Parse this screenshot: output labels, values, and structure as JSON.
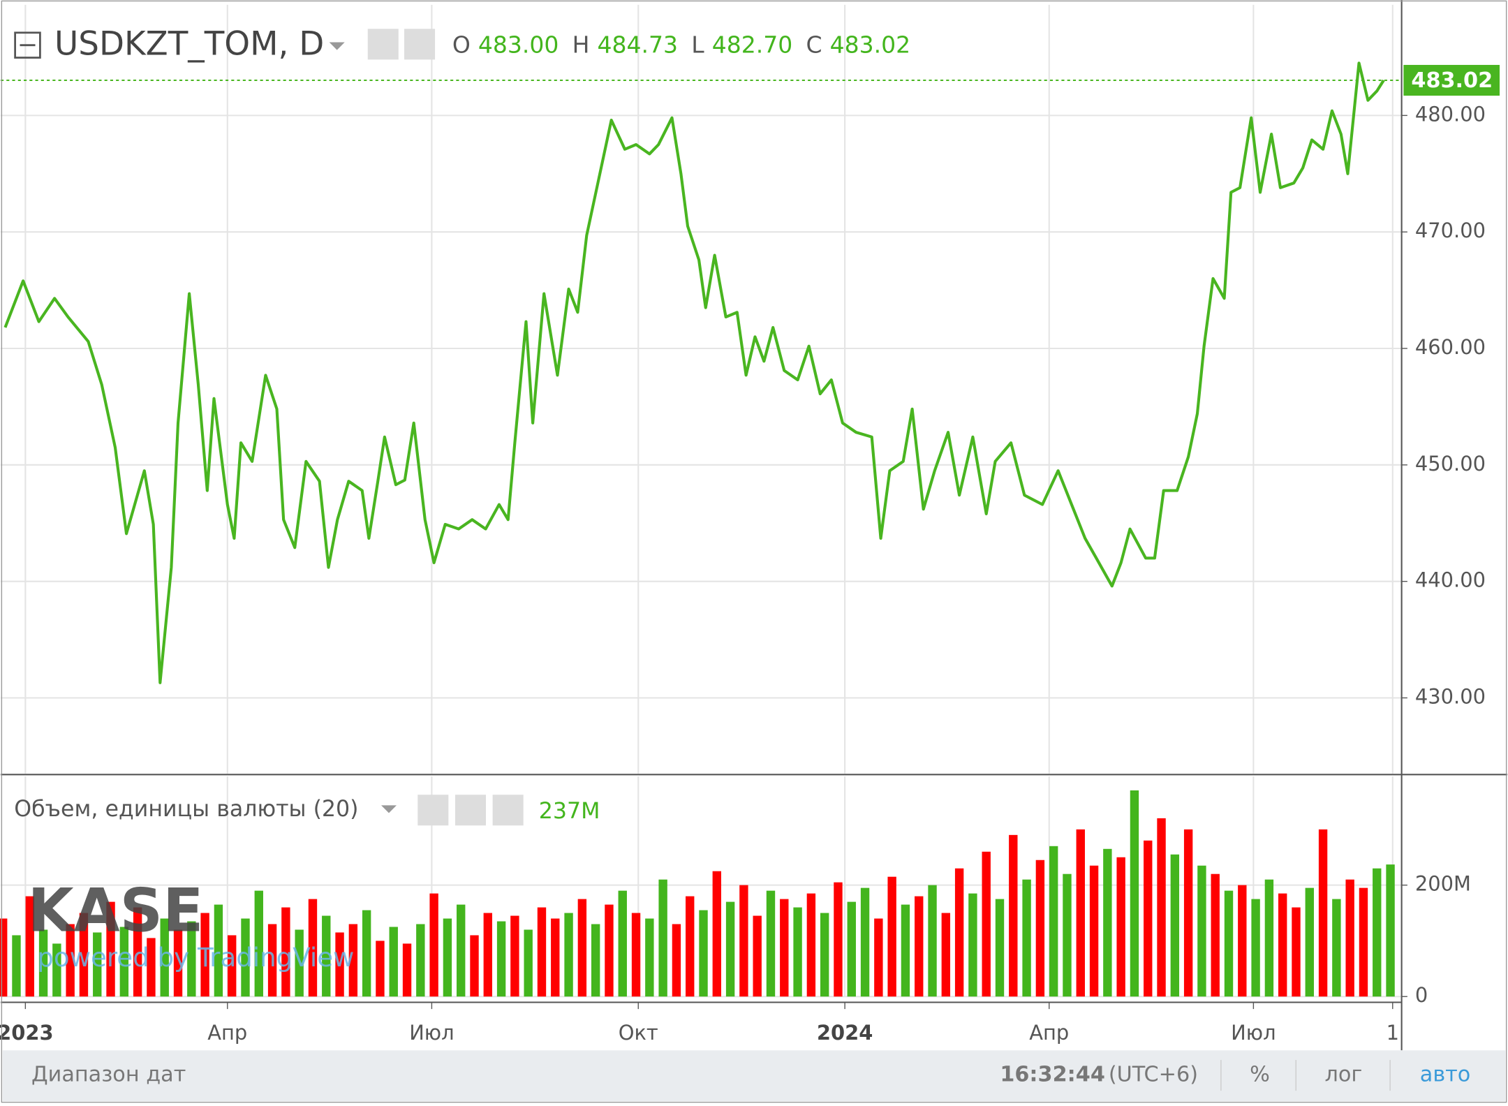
{
  "header": {
    "symbol": "USDKZT_TOM, D",
    "ohlc": [
      {
        "key": "O",
        "value": "483.00"
      },
      {
        "key": "H",
        "value": "484.73"
      },
      {
        "key": "L",
        "value": "482.70"
      },
      {
        "key": "C",
        "value": "483.02"
      }
    ]
  },
  "volume_header": {
    "title": "Объем, единицы валюты (20)",
    "last": "237M"
  },
  "watermark": {
    "logo": "KASE",
    "text": "powered by TradingView"
  },
  "footer": {
    "range": "Диапазон дат",
    "time": "16:32:44",
    "zone": "(UTC+6)",
    "percent": "%",
    "log": "лог",
    "auto": "авто"
  },
  "chart_data": [
    {
      "type": "line",
      "color": "#49b520",
      "grid": true,
      "last_price": {
        "value": 483.02,
        "label": "483.02"
      },
      "xlim": [
        -11,
        613
      ],
      "ylim": [
        423.5,
        489.5
      ],
      "xticks": [
        {
          "value": 0,
          "label": "2023"
        },
        {
          "value": 90,
          "label": "Апр"
        },
        {
          "value": 181,
          "label": "Июл"
        },
        {
          "value": 273,
          "label": "Окт"
        },
        {
          "value": 365,
          "label": "2024"
        },
        {
          "value": 456,
          "label": "Апр"
        },
        {
          "value": 547,
          "label": "Июл"
        },
        {
          "value": 609,
          "label": "1"
        }
      ],
      "yticks": [
        {
          "value": 430,
          "label": "430.00"
        },
        {
          "value": 440,
          "label": "440.00"
        },
        {
          "value": 450,
          "label": "450.00"
        },
        {
          "value": 460,
          "label": "460.00"
        },
        {
          "value": 470,
          "label": "470.00"
        },
        {
          "value": 480,
          "label": "480.00"
        }
      ],
      "x": [
        -9,
        -1,
        6,
        13,
        19,
        28,
        34,
        40,
        45,
        53,
        57,
        60,
        65,
        68,
        73,
        77,
        81,
        84,
        90,
        93,
        96,
        101,
        107,
        112,
        115,
        120,
        125,
        131,
        135,
        139,
        144,
        150,
        153,
        157,
        160,
        165,
        169,
        173,
        178,
        182,
        187,
        193,
        199,
        205,
        211,
        215,
        218,
        223,
        226,
        231,
        237,
        242,
        246,
        250,
        255,
        261,
        267,
        272,
        278,
        282,
        288,
        292,
        295,
        300,
        303,
        307,
        312,
        317,
        321,
        325,
        329,
        333,
        338,
        344,
        349,
        354,
        359,
        364,
        370,
        377,
        381,
        385,
        391,
        395,
        400,
        405,
        411,
        416,
        422,
        428,
        432,
        439,
        445,
        453,
        460,
        466,
        472,
        477,
        484,
        488,
        492,
        499,
        503,
        507,
        513,
        518,
        522,
        525,
        529,
        534,
        537,
        541,
        546,
        550,
        555,
        559,
        565,
        569,
        573,
        578,
        582,
        586,
        589,
        594,
        598,
        602,
        605
      ],
      "values": [
        461.8,
        465.8,
        462.3,
        464.3,
        462.7,
        460.6,
        456.9,
        451.5,
        444.1,
        449.5,
        444.9,
        431.3,
        441.2,
        453.6,
        464.7,
        456.9,
        447.8,
        455.7,
        446.6,
        443.7,
        451.9,
        450.3,
        457.7,
        454.8,
        445.3,
        442.9,
        450.3,
        448.6,
        441.2,
        445.3,
        448.6,
        447.8,
        443.7,
        448.6,
        452.4,
        448.3,
        448.7,
        453.6,
        445.3,
        441.6,
        444.9,
        444.5,
        445.3,
        444.5,
        446.6,
        445.3,
        451.9,
        462.3,
        453.6,
        464.7,
        457.7,
        465.1,
        463.1,
        469.7,
        474.2,
        479.6,
        477.1,
        477.5,
        476.7,
        477.5,
        479.8,
        475.0,
        470.5,
        467.6,
        463.5,
        468.0,
        462.7,
        463.1,
        457.7,
        461.0,
        458.9,
        461.8,
        458.1,
        457.3,
        460.2,
        456.1,
        457.3,
        453.6,
        452.8,
        452.4,
        443.7,
        449.5,
        450.3,
        454.8,
        446.2,
        449.5,
        452.8,
        447.4,
        452.4,
        445.8,
        450.3,
        451.9,
        447.4,
        446.6,
        449.5,
        446.6,
        443.7,
        442.0,
        439.6,
        441.6,
        444.5,
        442.0,
        442.0,
        447.8,
        447.8,
        450.7,
        454.4,
        460.2,
        466.0,
        464.3,
        473.4,
        473.8,
        479.8,
        473.4,
        478.4,
        473.8,
        474.2,
        475.5,
        477.9,
        477.1,
        480.4,
        478.4,
        475.0,
        484.5,
        481.3,
        482.1,
        483.02
      ]
    },
    {
      "type": "bar",
      "grid": true,
      "xlim": [
        -11,
        613
      ],
      "ylim": [
        0,
        395
      ],
      "yticks": [
        0,
        {
          "value": 200,
          "label": "200M"
        }
      ],
      "x": [
        -10,
        -4,
        2,
        8,
        14,
        20,
        26,
        32,
        38,
        44,
        50,
        56,
        62,
        68,
        74,
        80,
        86,
        92,
        98,
        104,
        110,
        116,
        122,
        128,
        134,
        140,
        146,
        152,
        158,
        164,
        170,
        176,
        182,
        188,
        194,
        200,
        206,
        212,
        218,
        224,
        230,
        236,
        242,
        248,
        254,
        260,
        266,
        272,
        278,
        284,
        290,
        296,
        302,
        308,
        314,
        320,
        326,
        332,
        338,
        344,
        350,
        356,
        362,
        368,
        374,
        380,
        386,
        392,
        398,
        404,
        410,
        416,
        422,
        428,
        434,
        440,
        446,
        452,
        458,
        464,
        470,
        476,
        482,
        488,
        494,
        500,
        506,
        512,
        518,
        524,
        530,
        536,
        542,
        548,
        554,
        560,
        566,
        572,
        578,
        584,
        590,
        596,
        602,
        608
      ],
      "values": [
        140,
        110,
        180,
        120,
        95,
        130,
        150,
        115,
        170,
        125,
        160,
        105,
        140,
        120,
        135,
        150,
        165,
        110,
        140,
        190,
        130,
        160,
        120,
        175,
        145,
        115,
        130,
        155,
        100,
        125,
        95,
        130,
        185,
        140,
        165,
        110,
        150,
        135,
        145,
        120,
        160,
        140,
        150,
        175,
        130,
        165,
        190,
        150,
        140,
        210,
        130,
        180,
        155,
        225,
        170,
        200,
        145,
        190,
        175,
        160,
        185,
        150,
        205,
        170,
        195,
        140,
        215,
        165,
        180,
        200,
        150,
        230,
        185,
        260,
        175,
        290,
        210,
        245,
        270,
        220,
        300,
        235,
        265,
        250,
        370,
        280,
        320,
        255,
        300,
        235,
        220,
        190,
        200,
        175,
        210,
        185,
        160,
        195,
        300,
        175,
        210,
        195,
        230,
        237
      ],
      "colors": [
        "#ff0000",
        "#43b51d",
        "#ff0000",
        "#43b51d",
        "#43b51d",
        "#ff0000",
        "#ff0000",
        "#43b51d",
        "#ff0000",
        "#43b51d",
        "#ff0000",
        "#ff0000",
        "#43b51d",
        "#ff0000",
        "#43b51d",
        "#ff0000",
        "#43b51d",
        "#ff0000",
        "#43b51d",
        "#43b51d",
        "#ff0000",
        "#ff0000",
        "#43b51d",
        "#ff0000",
        "#43b51d",
        "#ff0000",
        "#ff0000",
        "#43b51d",
        "#ff0000",
        "#43b51d",
        "#ff0000",
        "#43b51d",
        "#ff0000",
        "#43b51d",
        "#43b51d",
        "#ff0000",
        "#ff0000",
        "#43b51d",
        "#ff0000",
        "#43b51d",
        "#ff0000",
        "#ff0000",
        "#43b51d",
        "#ff0000",
        "#43b51d",
        "#ff0000",
        "#43b51d",
        "#ff0000",
        "#43b51d",
        "#43b51d",
        "#ff0000",
        "#ff0000",
        "#43b51d",
        "#ff0000",
        "#43b51d",
        "#ff0000",
        "#ff0000",
        "#43b51d",
        "#ff0000",
        "#43b51d",
        "#ff0000",
        "#43b51d",
        "#ff0000",
        "#43b51d",
        "#43b51d",
        "#ff0000",
        "#ff0000",
        "#43b51d",
        "#ff0000",
        "#43b51d",
        "#ff0000",
        "#ff0000",
        "#43b51d",
        "#ff0000",
        "#43b51d",
        "#ff0000",
        "#43b51d",
        "#ff0000",
        "#43b51d",
        "#43b51d",
        "#ff0000",
        "#ff0000",
        "#43b51d",
        "#ff0000",
        "#43b51d",
        "#ff0000",
        "#ff0000",
        "#43b51d",
        "#ff0000",
        "#43b51d",
        "#ff0000",
        "#43b51d",
        "#ff0000",
        "#43b51d",
        "#43b51d",
        "#ff0000",
        "#ff0000",
        "#43b51d",
        "#ff0000",
        "#43b51d",
        "#ff0000",
        "#ff0000",
        "#43b51d",
        "#43b51d"
      ]
    }
  ]
}
